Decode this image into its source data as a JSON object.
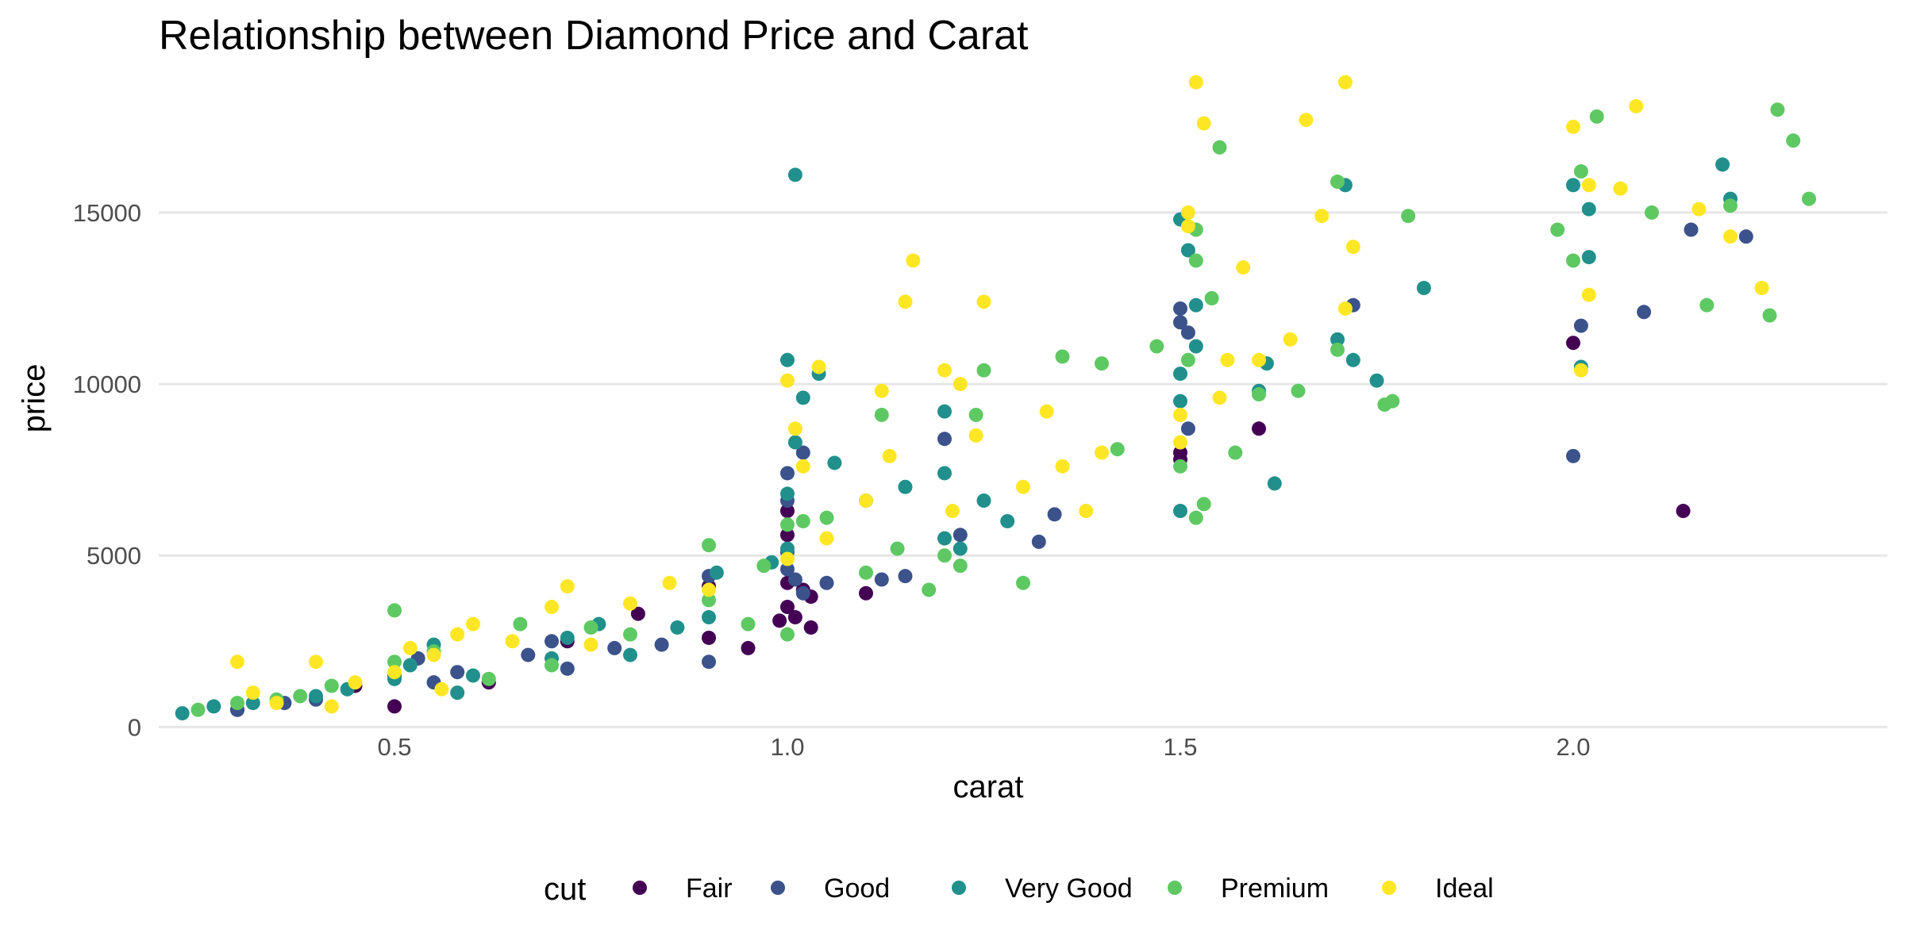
{
  "chart_data": {
    "type": "scatter",
    "title": "Relationship between Diamond Price and Carat",
    "xlabel": "carat",
    "ylabel": "price",
    "xlim": [
      0.2,
      2.4
    ],
    "ylim": [
      -200,
      19000
    ],
    "x_ticks": [
      {
        "value": 0.5,
        "label": "0.5"
      },
      {
        "value": 1.0,
        "label": "1.0"
      },
      {
        "value": 1.5,
        "label": "1.5"
      },
      {
        "value": 2.0,
        "label": "2.0"
      }
    ],
    "y_ticks": [
      {
        "value": 0,
        "label": "0"
      },
      {
        "value": 5000,
        "label": "5000"
      },
      {
        "value": 10000,
        "label": "10000"
      },
      {
        "value": 15000,
        "label": "15000"
      }
    ],
    "grid": true,
    "legend": {
      "title": "cut",
      "position": "bottom"
    },
    "series": [
      {
        "name": "Fair",
        "color": "#440154",
        "points": [
          [
            0.5,
            600
          ],
          [
            0.72,
            2500
          ],
          [
            0.81,
            3300
          ],
          [
            0.9,
            2600
          ],
          [
            0.95,
            2300
          ],
          [
            0.99,
            3100
          ],
          [
            1.0,
            3500
          ],
          [
            1.0,
            4200
          ],
          [
            1.0,
            5600
          ],
          [
            1.0,
            6300
          ],
          [
            1.01,
            3200
          ],
          [
            1.02,
            4000
          ],
          [
            1.03,
            2900
          ],
          [
            1.03,
            3800
          ],
          [
            1.1,
            3900
          ],
          [
            1.5,
            8000
          ],
          [
            1.5,
            7800
          ],
          [
            1.6,
            8700
          ],
          [
            2.0,
            11200
          ],
          [
            2.14,
            6300
          ],
          [
            0.3,
            500
          ],
          [
            0.45,
            1200
          ],
          [
            0.62,
            1300
          ],
          [
            0.9,
            4100
          ]
        ]
      },
      {
        "name": "Good",
        "color": "#3b528b",
        "points": [
          [
            0.3,
            500
          ],
          [
            0.4,
            800
          ],
          [
            0.5,
            1500
          ],
          [
            0.53,
            2000
          ],
          [
            0.58,
            1600
          ],
          [
            0.7,
            2500
          ],
          [
            0.72,
            1700
          ],
          [
            0.78,
            2300
          ],
          [
            0.84,
            2400
          ],
          [
            0.9,
            1900
          ],
          [
            0.9,
            4400
          ],
          [
            1.0,
            4600
          ],
          [
            1.0,
            5100
          ],
          [
            1.0,
            6600
          ],
          [
            1.0,
            7400
          ],
          [
            1.01,
            4300
          ],
          [
            1.02,
            3900
          ],
          [
            1.02,
            8000
          ],
          [
            1.05,
            4200
          ],
          [
            1.12,
            4300
          ],
          [
            1.15,
            4400
          ],
          [
            1.2,
            8400
          ],
          [
            1.22,
            5600
          ],
          [
            1.32,
            5400
          ],
          [
            1.34,
            6200
          ],
          [
            1.5,
            11800
          ],
          [
            1.51,
            8700
          ],
          [
            1.51,
            11500
          ],
          [
            1.5,
            12200
          ],
          [
            1.72,
            12300
          ],
          [
            2.0,
            7900
          ],
          [
            2.01,
            11700
          ],
          [
            2.09,
            12100
          ],
          [
            2.15,
            14500
          ],
          [
            2.22,
            14300
          ],
          [
            0.67,
            2100
          ],
          [
            0.36,
            700
          ],
          [
            0.55,
            1300
          ]
        ]
      },
      {
        "name": "Very Good",
        "color": "#21908c",
        "points": [
          [
            0.23,
            400
          ],
          [
            0.27,
            600
          ],
          [
            0.32,
            700
          ],
          [
            0.4,
            900
          ],
          [
            0.5,
            1400
          ],
          [
            0.52,
            1800
          ],
          [
            0.55,
            2400
          ],
          [
            0.6,
            1500
          ],
          [
            0.7,
            2000
          ],
          [
            0.72,
            2600
          ],
          [
            0.76,
            3000
          ],
          [
            0.8,
            2100
          ],
          [
            0.86,
            2900
          ],
          [
            0.9,
            3200
          ],
          [
            0.91,
            4500
          ],
          [
            0.98,
            4800
          ],
          [
            1.0,
            5200
          ],
          [
            1.0,
            6800
          ],
          [
            1.0,
            10700
          ],
          [
            1.01,
            16100
          ],
          [
            1.02,
            9600
          ],
          [
            1.01,
            8300
          ],
          [
            1.04,
            10300
          ],
          [
            1.06,
            7700
          ],
          [
            1.1,
            6600
          ],
          [
            1.15,
            7000
          ],
          [
            1.2,
            5500
          ],
          [
            1.2,
            7400
          ],
          [
            1.2,
            9200
          ],
          [
            1.22,
            5200
          ],
          [
            1.25,
            6600
          ],
          [
            1.28,
            6000
          ],
          [
            1.5,
            6300
          ],
          [
            1.5,
            9500
          ],
          [
            1.5,
            10300
          ],
          [
            1.5,
            14800
          ],
          [
            1.51,
            13900
          ],
          [
            1.52,
            11100
          ],
          [
            1.52,
            12300
          ],
          [
            1.6,
            9800
          ],
          [
            1.61,
            10600
          ],
          [
            1.62,
            7100
          ],
          [
            1.7,
            11300
          ],
          [
            1.71,
            15800
          ],
          [
            1.72,
            10700
          ],
          [
            1.75,
            10100
          ],
          [
            1.81,
            12800
          ],
          [
            2.0,
            15800
          ],
          [
            2.01,
            10500
          ],
          [
            2.02,
            13700
          ],
          [
            2.02,
            15100
          ],
          [
            2.19,
            16400
          ],
          [
            2.2,
            15400
          ],
          [
            0.58,
            1000
          ],
          [
            0.44,
            1100
          ]
        ]
      },
      {
        "name": "Premium",
        "color": "#5ec962",
        "points": [
          [
            0.25,
            500
          ],
          [
            0.3,
            700
          ],
          [
            0.35,
            800
          ],
          [
            0.42,
            1200
          ],
          [
            0.5,
            3400
          ],
          [
            0.5,
            1900
          ],
          [
            0.55,
            2200
          ],
          [
            0.62,
            1400
          ],
          [
            0.7,
            1800
          ],
          [
            0.75,
            2900
          ],
          [
            0.8,
            2700
          ],
          [
            0.9,
            5300
          ],
          [
            0.9,
            3700
          ],
          [
            0.95,
            3000
          ],
          [
            0.97,
            4700
          ],
          [
            1.0,
            2700
          ],
          [
            1.0,
            5900
          ],
          [
            1.02,
            6000
          ],
          [
            1.05,
            6100
          ],
          [
            1.1,
            4500
          ],
          [
            1.12,
            9100
          ],
          [
            1.14,
            5200
          ],
          [
            1.18,
            4000
          ],
          [
            1.2,
            5000
          ],
          [
            1.22,
            4700
          ],
          [
            1.24,
            9100
          ],
          [
            1.25,
            10400
          ],
          [
            1.3,
            4200
          ],
          [
            1.35,
            10800
          ],
          [
            1.4,
            10600
          ],
          [
            1.42,
            8100
          ],
          [
            1.47,
            11100
          ],
          [
            1.5,
            7600
          ],
          [
            1.51,
            10700
          ],
          [
            1.52,
            6100
          ],
          [
            1.53,
            6500
          ],
          [
            1.52,
            13600
          ],
          [
            1.52,
            14500
          ],
          [
            1.54,
            12500
          ],
          [
            1.55,
            16900
          ],
          [
            1.57,
            8000
          ],
          [
            1.6,
            9700
          ],
          [
            1.65,
            9800
          ],
          [
            1.7,
            11000
          ],
          [
            1.7,
            15900
          ],
          [
            1.76,
            9400
          ],
          [
            1.77,
            9500
          ],
          [
            1.79,
            14900
          ],
          [
            1.98,
            14500
          ],
          [
            2.0,
            13600
          ],
          [
            2.01,
            16200
          ],
          [
            2.03,
            17800
          ],
          [
            2.1,
            15000
          ],
          [
            2.17,
            12300
          ],
          [
            2.2,
            15200
          ],
          [
            2.25,
            12000
          ],
          [
            2.26,
            18000
          ],
          [
            2.28,
            17100
          ],
          [
            2.3,
            15400
          ],
          [
            0.66,
            3000
          ],
          [
            0.38,
            900
          ]
        ]
      },
      {
        "name": "Ideal",
        "color": "#fde725",
        "points": [
          [
            0.3,
            1900
          ],
          [
            0.32,
            1000
          ],
          [
            0.35,
            700
          ],
          [
            0.4,
            1900
          ],
          [
            0.45,
            1300
          ],
          [
            0.5,
            1600
          ],
          [
            0.52,
            2300
          ],
          [
            0.55,
            2100
          ],
          [
            0.58,
            2700
          ],
          [
            0.6,
            3000
          ],
          [
            0.65,
            2500
          ],
          [
            0.7,
            3500
          ],
          [
            0.72,
            4100
          ],
          [
            0.75,
            2400
          ],
          [
            0.8,
            3600
          ],
          [
            0.85,
            4200
          ],
          [
            0.9,
            4000
          ],
          [
            1.0,
            4900
          ],
          [
            1.0,
            10100
          ],
          [
            1.01,
            8700
          ],
          [
            1.02,
            7600
          ],
          [
            1.04,
            10500
          ],
          [
            1.05,
            5500
          ],
          [
            1.1,
            6600
          ],
          [
            1.12,
            9800
          ],
          [
            1.13,
            7900
          ],
          [
            1.15,
            12400
          ],
          [
            1.16,
            13600
          ],
          [
            1.2,
            10400
          ],
          [
            1.21,
            6300
          ],
          [
            1.22,
            10000
          ],
          [
            1.24,
            8500
          ],
          [
            1.25,
            12400
          ],
          [
            1.3,
            7000
          ],
          [
            1.33,
            9200
          ],
          [
            1.35,
            7600
          ],
          [
            1.38,
            6300
          ],
          [
            1.4,
            8000
          ],
          [
            1.5,
            8300
          ],
          [
            1.5,
            9100
          ],
          [
            1.51,
            14600
          ],
          [
            1.51,
            15000
          ],
          [
            1.52,
            18800
          ],
          [
            1.53,
            17600
          ],
          [
            1.55,
            9600
          ],
          [
            1.56,
            10700
          ],
          [
            1.58,
            13400
          ],
          [
            1.6,
            10700
          ],
          [
            1.64,
            11300
          ],
          [
            1.66,
            17700
          ],
          [
            1.68,
            14900
          ],
          [
            1.71,
            18800
          ],
          [
            1.71,
            12200
          ],
          [
            1.72,
            14000
          ],
          [
            2.0,
            17500
          ],
          [
            2.01,
            10400
          ],
          [
            2.02,
            12600
          ],
          [
            2.02,
            15800
          ],
          [
            2.06,
            15700
          ],
          [
            2.08,
            18100
          ],
          [
            2.16,
            15100
          ],
          [
            2.2,
            14300
          ],
          [
            2.24,
            12800
          ],
          [
            0.56,
            1100
          ],
          [
            0.42,
            600
          ]
        ]
      }
    ]
  }
}
